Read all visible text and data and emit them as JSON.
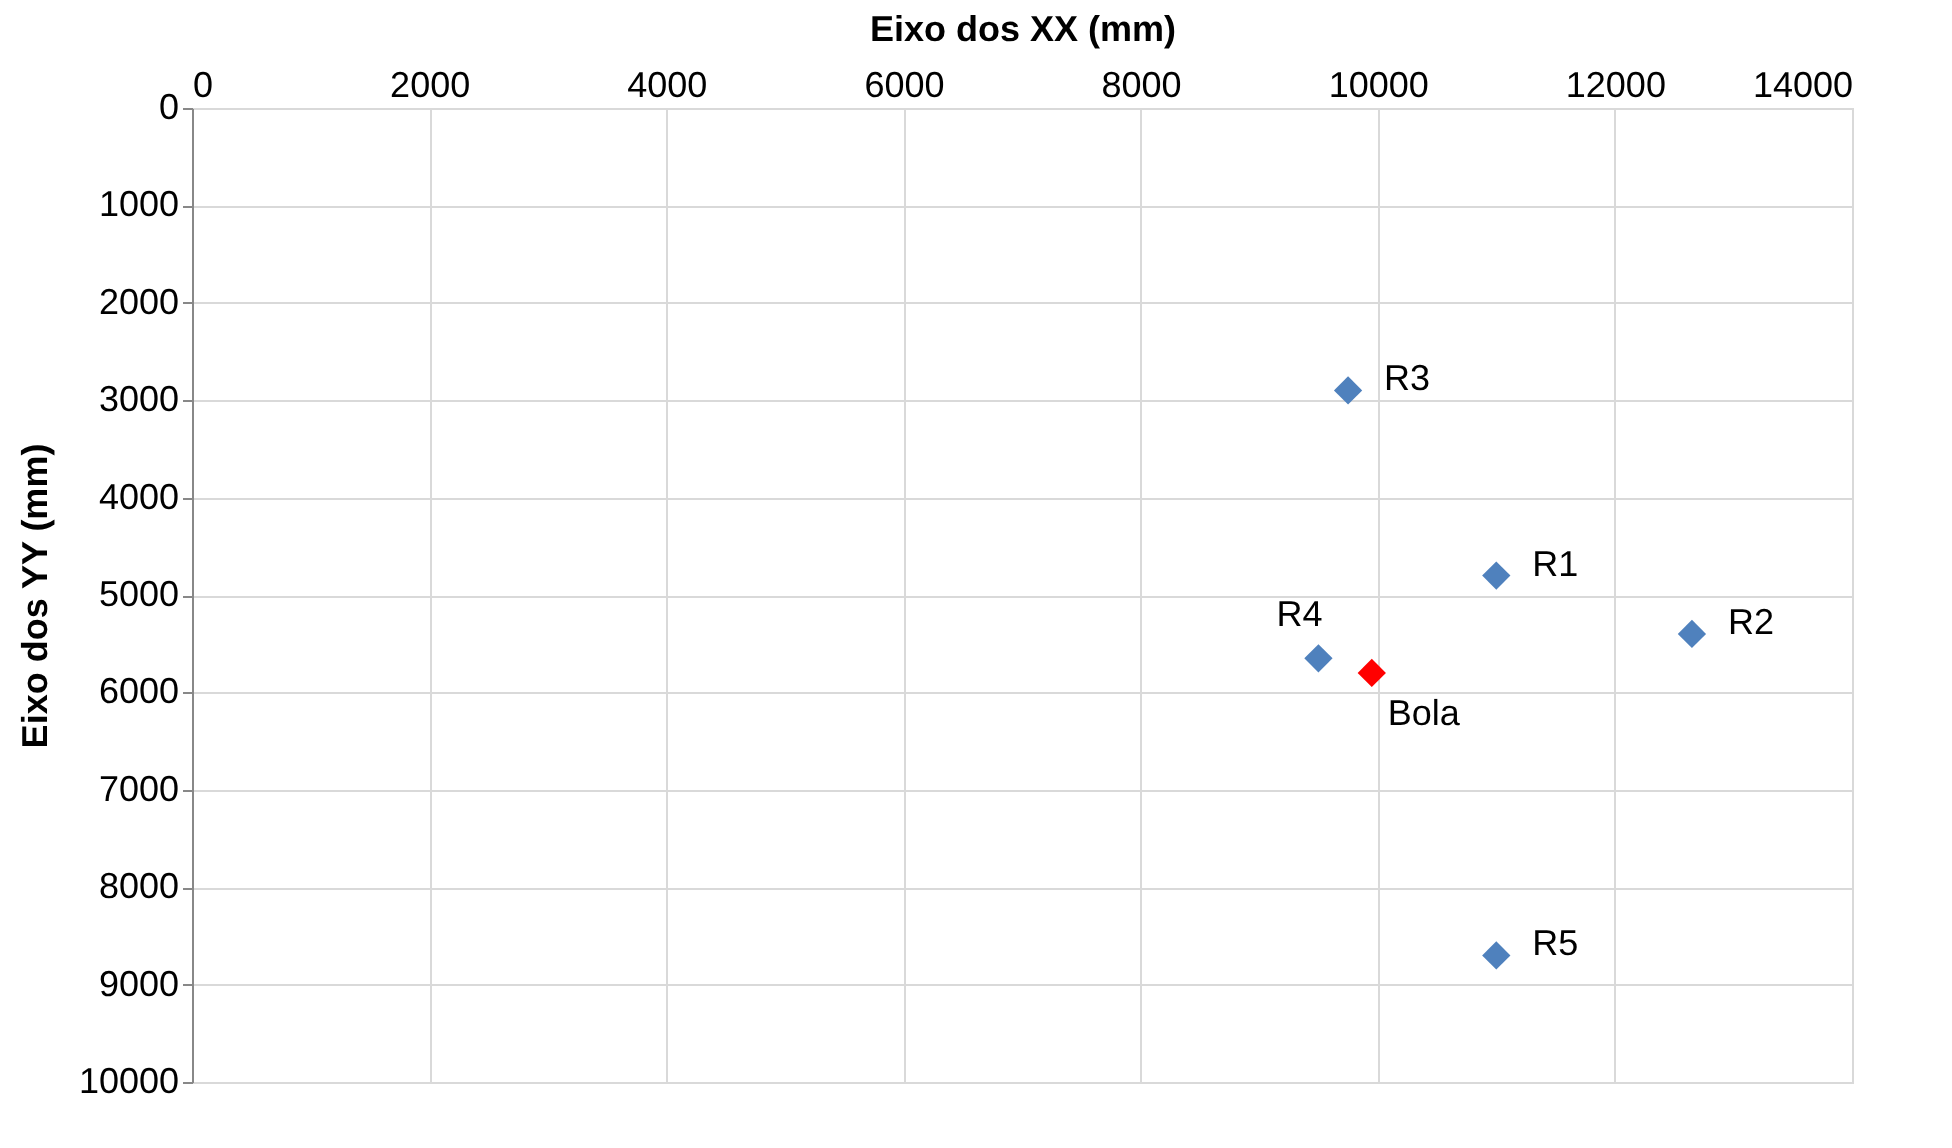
{
  "chart_data": {
    "type": "scatter",
    "xlabel": "Eixo dos XX (mm)",
    "ylabel": "Eixo dos YY (mm)",
    "xlim": [
      0,
      14000
    ],
    "xticks": [
      0,
      2000,
      4000,
      6000,
      8000,
      10000,
      12000,
      14000
    ],
    "ylim": [
      10000,
      0
    ],
    "yticks": [
      0,
      1000,
      2000,
      3000,
      4000,
      5000,
      6000,
      7000,
      8000,
      9000,
      10000
    ],
    "grid": true,
    "marker": "diamond",
    "legend": false,
    "series": [
      {
        "color": "#4f81bd",
        "x": [
          11000,
          12650,
          9750,
          9500,
          11000
        ],
        "values": [
          4800,
          5400,
          2900,
          5650,
          8700
        ]
      },
      {
        "color": "#ff0000",
        "x": [
          9950
        ],
        "values": [
          5800
        ]
      }
    ],
    "annotations": [
      {
        "text": "R1",
        "x": 11000,
        "y": 4800
      },
      {
        "text": "R2",
        "x": 12650,
        "y": 5400
      },
      {
        "text": "R3",
        "x": 9750,
        "y": 2900
      },
      {
        "text": "R4",
        "x": 9500,
        "y": 5650
      },
      {
        "text": "Bola",
        "x": 9950,
        "y": 5800
      },
      {
        "text": "R5",
        "x": 11000,
        "y": 8700
      }
    ]
  }
}
